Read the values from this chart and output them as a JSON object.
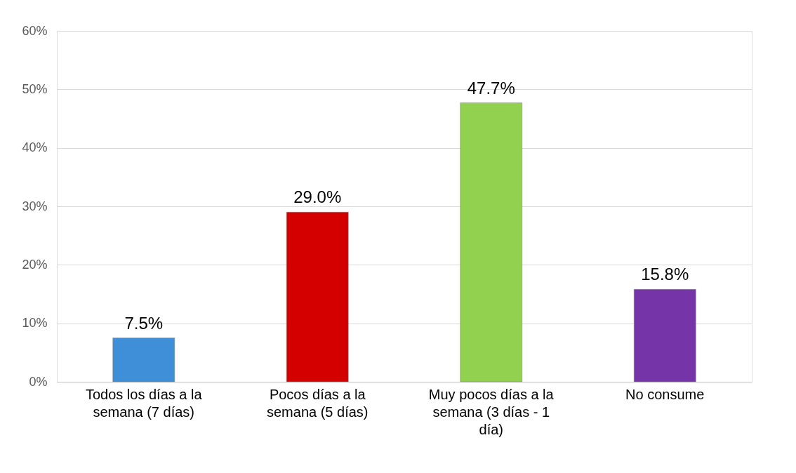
{
  "chart_data": {
    "type": "bar",
    "categories": [
      "Todos los días a la semana (7 días)",
      "Pocos días a la semana (5 días)",
      "Muy pocos días a la semana (3 días - 1 día)",
      "No consume"
    ],
    "values": [
      7.5,
      29.0,
      47.7,
      15.8
    ],
    "colors": [
      "#3f8fd8",
      "#d40000",
      "#92d050",
      "#7535a8"
    ],
    "value_labels": [
      "7.5%",
      "29.0%",
      "47.7%",
      "15.8%"
    ],
    "ylim": [
      0,
      60
    ],
    "yticks": [
      {
        "value": 0,
        "label": "0%"
      },
      {
        "value": 10,
        "label": "10%"
      },
      {
        "value": 20,
        "label": "20%"
      },
      {
        "value": 30,
        "label": "30%"
      },
      {
        "value": 40,
        "label": "40%"
      },
      {
        "value": 50,
        "label": "50%"
      },
      {
        "value": 60,
        "label": "60%"
      }
    ],
    "grid": "y"
  }
}
